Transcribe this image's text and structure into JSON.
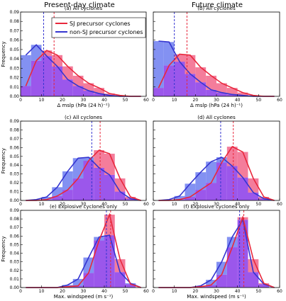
{
  "figure": {
    "column_titles": [
      "Present-day climate",
      "Future climate"
    ],
    "legend": [
      {
        "label": "SJ precursor cyclones",
        "color": "#e8334a"
      },
      {
        "label": "non-SJ precursor cyclones",
        "color": "#3a3ad4"
      }
    ],
    "colors": {
      "sj_bar": "#f2668a",
      "nsj_bar": "#6d7ef0",
      "overlap": "#8a39e8",
      "sj_line": "#e8283c",
      "nsj_line": "#3535d0"
    }
  },
  "chart_data": [
    {
      "type": "bar",
      "title": "(a) All cyclones",
      "xlabel": "Δ mslp (hPa (24 h)⁻¹)",
      "ylabel": "Frequency",
      "xlim": [
        0,
        60
      ],
      "ylim": [
        0,
        0.09
      ],
      "xticks": [
        "0",
        "10",
        "20",
        "30",
        "40",
        "50",
        "60"
      ],
      "yticks": [
        "0.00",
        "0.01",
        "0.02",
        "0.03",
        "0.04",
        "0.05",
        "0.06",
        "0.07",
        "0.08",
        "0.09"
      ],
      "bin_centers": [
        2.5,
        7.5,
        12.5,
        17.5,
        22.5,
        27.5,
        32.5,
        37.5,
        42.5,
        47.5,
        52.5,
        57.5
      ],
      "series": [
        {
          "name": "SJ precursor cyclones",
          "values": [
            0.011,
            0.038,
            0.049,
            0.044,
            0.032,
            0.022,
            0.014,
            0.009,
            0.003,
            0.001,
            0.0,
            0.0
          ],
          "median": 16
        },
        {
          "name": "non-SJ precursor cyclones",
          "values": [
            0.044,
            0.055,
            0.043,
            0.032,
            0.018,
            0.011,
            0.006,
            0.003,
            0.001,
            0.0,
            0.0,
            0.0
          ],
          "median": 11
        }
      ]
    },
    {
      "type": "bar",
      "title": "(b) All cyclones",
      "xlabel": "Δ mslp (hPa (24 h)⁻¹)",
      "ylabel": "",
      "xlim": [
        0,
        60
      ],
      "ylim": [
        0,
        0.09
      ],
      "xticks": [
        "0",
        "10",
        "20",
        "30",
        "40",
        "50",
        "60"
      ],
      "yticks": [],
      "bin_centers": [
        2.5,
        7.5,
        12.5,
        17.5,
        22.5,
        27.5,
        32.5,
        37.5,
        42.5,
        47.5,
        52.5,
        57.5
      ],
      "series": [
        {
          "name": "SJ precursor cyclones",
          "values": [
            0.009,
            0.033,
            0.045,
            0.044,
            0.031,
            0.022,
            0.014,
            0.009,
            0.004,
            0.001,
            0.0,
            0.0
          ],
          "median": 16
        },
        {
          "name": "non-SJ precursor cyclones",
          "values": [
            0.059,
            0.058,
            0.037,
            0.024,
            0.015,
            0.007,
            0.004,
            0.002,
            0.001,
            0.0,
            0.0,
            0.0
          ],
          "median": 10
        }
      ]
    },
    {
      "type": "bar",
      "title": "(c) All cyclones",
      "xlabel": "",
      "ylabel": "Frequency",
      "xlim": [
        0,
        60
      ],
      "ylim": [
        0,
        0.09
      ],
      "xticks": [
        "0",
        "10",
        "20",
        "30",
        "40",
        "50",
        "60"
      ],
      "yticks": [
        "0.00",
        "0.01",
        "0.02",
        "0.03",
        "0.04",
        "0.05",
        "0.06",
        "0.07",
        "0.08",
        "0.09"
      ],
      "bin_centers": [
        2.5,
        7.5,
        12.5,
        17.5,
        22.5,
        27.5,
        32.5,
        37.5,
        42.5,
        47.5,
        52.5,
        57.5
      ],
      "series": [
        {
          "name": "SJ precursor cyclones",
          "values": [
            0.0,
            0.0,
            0.001,
            0.005,
            0.012,
            0.025,
            0.045,
            0.057,
            0.053,
            0.025,
            0.004,
            0.0
          ],
          "median": 38
        },
        {
          "name": "non-SJ precursor cyclones",
          "values": [
            0.0,
            0.001,
            0.004,
            0.015,
            0.033,
            0.048,
            0.049,
            0.037,
            0.029,
            0.01,
            0.002,
            0.0
          ],
          "median": 34
        }
      ]
    },
    {
      "type": "bar",
      "title": "(d) All cyclones",
      "xlabel": "",
      "ylabel": "",
      "xlim": [
        0,
        60
      ],
      "ylim": [
        0,
        0.09
      ],
      "xticks": [
        "0",
        "10",
        "20",
        "30",
        "40",
        "50",
        "60"
      ],
      "yticks": [],
      "bin_centers": [
        2.5,
        7.5,
        12.5,
        17.5,
        22.5,
        27.5,
        32.5,
        37.5,
        42.5,
        47.5,
        52.5,
        57.5
      ],
      "series": [
        {
          "name": "SJ precursor cyclones",
          "values": [
            0.0,
            0.0,
            0.001,
            0.004,
            0.012,
            0.02,
            0.043,
            0.061,
            0.055,
            0.025,
            0.004,
            0.0
          ],
          "median": 38
        },
        {
          "name": "non-SJ precursor cyclones",
          "values": [
            0.0,
            0.001,
            0.005,
            0.019,
            0.032,
            0.044,
            0.049,
            0.039,
            0.026,
            0.009,
            0.002,
            0.0
          ],
          "median": 32
        }
      ]
    },
    {
      "type": "bar",
      "title": "(e) Explosive cyclones only",
      "xlabel": "Max. windspeed (m s⁻¹)",
      "ylabel": "Frequency",
      "xlim": [
        0,
        60
      ],
      "ylim": [
        0,
        0.09
      ],
      "xticks": [
        "0",
        "10",
        "20",
        "30",
        "40",
        "50",
        "60"
      ],
      "yticks": [
        "0.00",
        "0.01",
        "0.02",
        "0.03",
        "0.04",
        "0.05",
        "0.06",
        "0.07",
        "0.08",
        "0.09"
      ],
      "bin_centers": [
        2.5,
        7.5,
        12.5,
        17.5,
        22.5,
        27.5,
        32.5,
        37.5,
        42.5,
        47.5,
        52.5,
        57.5
      ],
      "series": [
        {
          "name": "SJ precursor cyclones",
          "values": [
            0.0,
            0.0,
            0.0,
            0.0,
            0.001,
            0.002,
            0.017,
            0.055,
            0.085,
            0.033,
            0.004,
            0.0
          ],
          "median": 43
        },
        {
          "name": "non-SJ precursor cyclones",
          "values": [
            0.0,
            0.0,
            0.0,
            0.0,
            0.003,
            0.01,
            0.035,
            0.059,
            0.061,
            0.018,
            0.005,
            0.0
          ],
          "median": 41
        }
      ]
    },
    {
      "type": "bar",
      "title": "(f) Explosive cyclones only",
      "xlabel": "Max. windspeed (m s⁻¹)",
      "ylabel": "",
      "xlim": [
        0,
        60
      ],
      "ylim": [
        0,
        0.09
      ],
      "xticks": [
        "0",
        "10",
        "20",
        "30",
        "40",
        "50",
        "60"
      ],
      "yticks": [],
      "bin_centers": [
        2.5,
        7.5,
        12.5,
        17.5,
        22.5,
        27.5,
        32.5,
        37.5,
        42.5,
        47.5,
        52.5,
        57.5
      ],
      "series": [
        {
          "name": "SJ precursor cyclones",
          "values": [
            0.0,
            0.0,
            0.0,
            0.0,
            0.001,
            0.003,
            0.015,
            0.047,
            0.082,
            0.033,
            0.005,
            0.0
          ],
          "median": 43
        },
        {
          "name": "non-SJ precursor cyclones",
          "values": [
            0.0,
            0.0,
            0.0,
            0.0,
            0.002,
            0.009,
            0.03,
            0.059,
            0.079,
            0.018,
            0.004,
            0.0
          ],
          "median": 41
        }
      ]
    }
  ]
}
